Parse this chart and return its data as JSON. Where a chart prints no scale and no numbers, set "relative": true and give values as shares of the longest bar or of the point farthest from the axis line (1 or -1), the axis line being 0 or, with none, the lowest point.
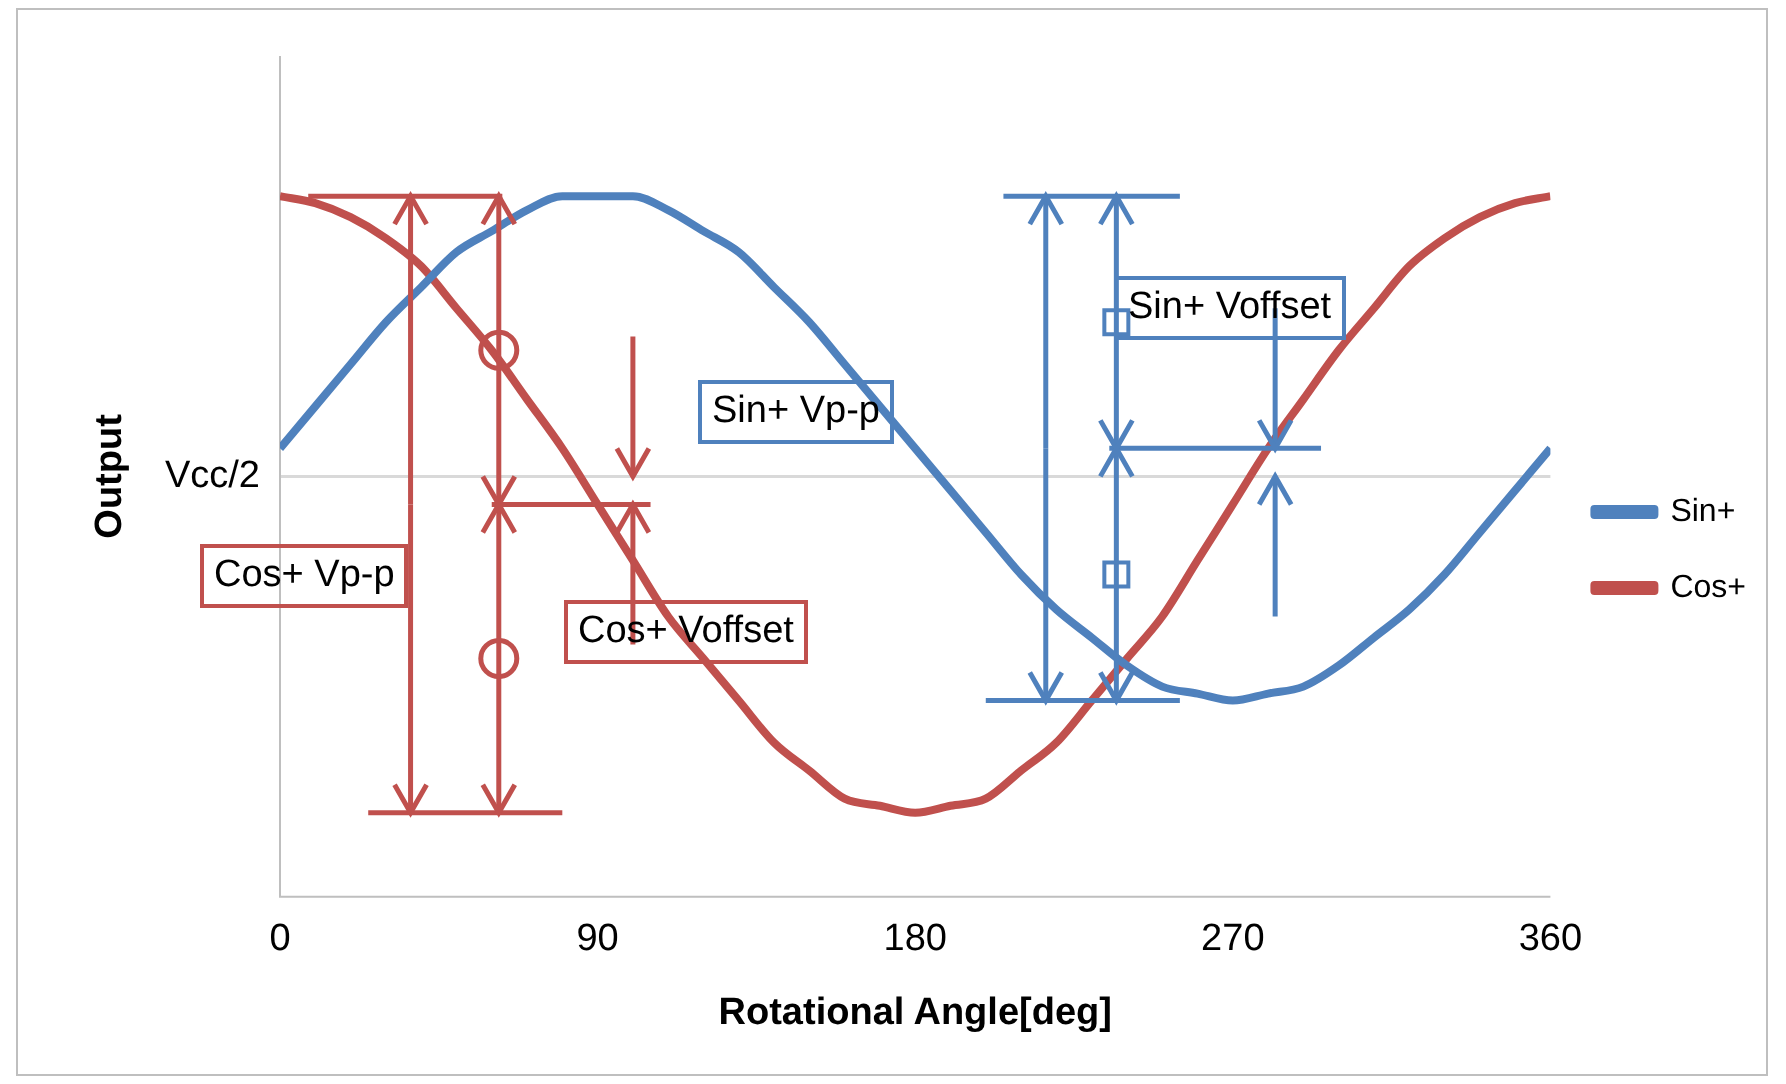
{
  "chart_data": {
    "type": "line",
    "relative": true,
    "xlabel": "Rotational Angle[deg]",
    "ylabel": "Output",
    "x": [
      0,
      10,
      20,
      30,
      40,
      50,
      60,
      70,
      80,
      90,
      100,
      110,
      120,
      130,
      140,
      150,
      160,
      170,
      180,
      190,
      200,
      210,
      220,
      230,
      240,
      250,
      260,
      270,
      280,
      290,
      300,
      310,
      320,
      330,
      340,
      350,
      360
    ],
    "xlim": [
      0,
      360
    ],
    "xticks": [
      0,
      90,
      180,
      270,
      360
    ],
    "series": [
      {
        "name": "Sin+",
        "color": "#4f81bd",
        "values": [
          0.64,
          0.7,
          0.76,
          0.82,
          0.87,
          0.92,
          0.95,
          0.98,
          1.0,
          1.0,
          1.0,
          0.98,
          0.95,
          0.92,
          0.87,
          0.82,
          0.76,
          0.7,
          0.64,
          0.58,
          0.52,
          0.46,
          0.41,
          0.37,
          0.33,
          0.3,
          0.29,
          0.28,
          0.29,
          0.3,
          0.33,
          0.37,
          0.41,
          0.46,
          0.52,
          0.58,
          0.64
        ]
      },
      {
        "name": "Cos+",
        "color": "#c0504d",
        "values": [
          1.0,
          0.99,
          0.97,
          0.94,
          0.9,
          0.84,
          0.78,
          0.71,
          0.64,
          0.56,
          0.48,
          0.4,
          0.34,
          0.28,
          0.22,
          0.18,
          0.14,
          0.13,
          0.12,
          0.13,
          0.14,
          0.18,
          0.22,
          0.28,
          0.34,
          0.4,
          0.48,
          0.56,
          0.64,
          0.71,
          0.78,
          0.84,
          0.9,
          0.94,
          0.97,
          0.99,
          1.0
        ]
      }
    ],
    "ref_lines": [
      {
        "axis": "y",
        "value": 0.6,
        "label": "Vcc/2",
        "color": "#d9d9d9"
      }
    ],
    "annotations": [
      "Cos+ Vp-p",
      "Cos+ Voffset",
      "Sin+ Vp-p",
      "Sin+ Voffset"
    ],
    "legend": "right",
    "marker": "none",
    "line_style": "solid",
    "grid": false
  }
}
